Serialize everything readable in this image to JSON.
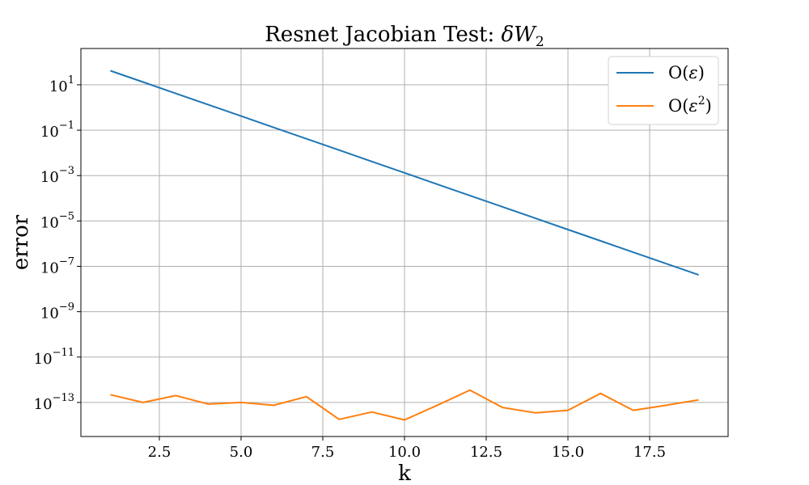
{
  "chart_data": {
    "type": "line",
    "title": "Resnet Jacobian Test: δW₂",
    "xlabel": "k",
    "ylabel": "error",
    "xlim": [
      0.1,
      19.9
    ],
    "yscale": "log",
    "ylim_exponents": [
      -14.5,
      2.6
    ],
    "grid": true,
    "legend_position": "top-right",
    "xticks": [
      2.5,
      5.0,
      7.5,
      10.0,
      12.5,
      15.0,
      17.5
    ],
    "xtick_labels": [
      "2.5",
      "5.0",
      "7.5",
      "10.0",
      "12.5",
      "15.0",
      "17.5"
    ],
    "yticks_exponents": [
      1,
      -1,
      -3,
      -5,
      -7,
      -9,
      -11,
      -13
    ],
    "ytick_labels": [
      {
        "base": "10",
        "exp": "1"
      },
      {
        "base": "10",
        "exp": "−1"
      },
      {
        "base": "10",
        "exp": "−3"
      },
      {
        "base": "10",
        "exp": "−5"
      },
      {
        "base": "10",
        "exp": "−7"
      },
      {
        "base": "10",
        "exp": "−9"
      },
      {
        "base": "10",
        "exp": "−11"
      },
      {
        "base": "10",
        "exp": "−13"
      }
    ],
    "x": [
      1,
      2,
      3,
      4,
      5,
      6,
      7,
      8,
      9,
      10,
      11,
      12,
      13,
      14,
      15,
      16,
      17,
      18,
      19
    ],
    "series": [
      {
        "name": "O(ε)",
        "color": "#1f77b4",
        "values": [
          41.7,
          13.2,
          4.17,
          1.32,
          0.417,
          0.132,
          0.0417,
          0.0132,
          0.00417,
          0.00132,
          0.000417,
          0.000132,
          4.17e-05,
          1.32e-05,
          4.17e-06,
          1.32e-06,
          4.17e-07,
          1.32e-07,
          4.17e-08
        ]
      },
      {
        "name": "O(ε²)",
        "color": "#ff7f0e",
        "values": [
          2.2e-13,
          1e-13,
          2e-13,
          8.5e-14,
          1e-13,
          7.5e-14,
          1.8e-13,
          1.8e-14,
          3.8e-14,
          1.7e-14,
          7.5e-14,
          3.5e-13,
          6e-14,
          3.5e-14,
          4.5e-14,
          2.5e-13,
          4.5e-14,
          7.5e-14,
          1.3e-13
        ]
      }
    ]
  },
  "legend": {
    "items": [
      {
        "prefix": "O(",
        "symbol": "ε",
        "sup": "",
        "suffix": ")"
      },
      {
        "prefix": "O(",
        "symbol": "ε",
        "sup": "2",
        "suffix": ")"
      }
    ]
  },
  "title_parts": {
    "text": "Resnet Jacobian Test: ",
    "math": "δW",
    "sub": "2"
  }
}
